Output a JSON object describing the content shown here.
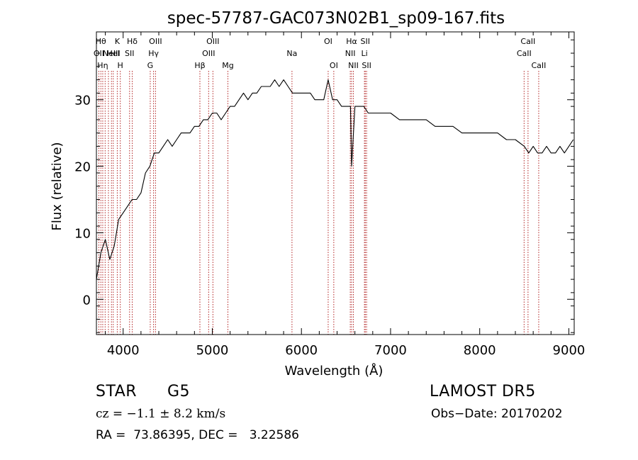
{
  "chart_data": {
    "type": "line",
    "title": "spec-57787-GAC073N02B1_sp09-167.fits",
    "xlabel": "Wavelength (Å)",
    "ylabel": "Flux (relative)",
    "xlim": [
      3700,
      9060
    ],
    "ylim": [
      -5.3,
      40.2
    ],
    "x_ticks": [
      4000,
      5000,
      6000,
      7000,
      8000,
      9000
    ],
    "x_tick_labels": [
      "4000",
      "5000",
      "6000",
      "7000",
      "8000",
      "9000"
    ],
    "y_ticks": [
      0,
      10,
      20,
      30
    ],
    "y_tick_labels": [
      "0",
      "10",
      "20",
      "30"
    ],
    "grid": false,
    "line_color": "#000000",
    "marker_color": "#b22222",
    "series": [
      {
        "x": [
          3700,
          3750,
          3800,
          3850,
          3900,
          3950,
          4000,
          4050,
          4100,
          4150,
          4200,
          4250,
          4300,
          4350,
          4400,
          4450,
          4500,
          4550,
          4600,
          4650,
          4700,
          4750,
          4800,
          4850,
          4900,
          4950,
          5000,
          5050,
          5100,
          5150,
          5200,
          5250,
          5300,
          5350,
          5400,
          5450,
          5500,
          5550,
          5600,
          5650,
          5700,
          5750,
          5800,
          5850,
          5900,
          5950,
          6000,
          6050,
          6100,
          6150,
          6200,
          6250,
          6300,
          6350,
          6400,
          6450,
          6500,
          6550,
          6563,
          6600,
          6650,
          6700,
          6750,
          6800,
          6850,
          6900,
          6950,
          7000,
          7100,
          7200,
          7300,
          7400,
          7500,
          7600,
          7700,
          7800,
          7900,
          8000,
          8100,
          8200,
          8300,
          8400,
          8500,
          8550,
          8600,
          8650,
          8700,
          8750,
          8800,
          8850,
          8900,
          8950,
          9000,
          9050
        ],
        "y": [
          3,
          7,
          9,
          6,
          8,
          12,
          13,
          14,
          15,
          15,
          16,
          19,
          20,
          22,
          22,
          23,
          24,
          23,
          24,
          25,
          25,
          25,
          26,
          26,
          27,
          27,
          28,
          28,
          27,
          28,
          29,
          29,
          30,
          31,
          30,
          31,
          31,
          32,
          32,
          32,
          33,
          32,
          33,
          32,
          31,
          31,
          31,
          31,
          31,
          30,
          30,
          30,
          33,
          30,
          30,
          29,
          29,
          29,
          20,
          29,
          29,
          29,
          28,
          28,
          28,
          28,
          28,
          28,
          27,
          27,
          27,
          27,
          26,
          26,
          26,
          25,
          25,
          25,
          25,
          25,
          24,
          24,
          23,
          22,
          23,
          22,
          22,
          23,
          22,
          22,
          23,
          22,
          23,
          24
        ]
      }
    ],
    "lines": [
      {
        "x": 3727,
        "row": 1,
        "label": "OII"
      },
      {
        "x": 3750,
        "row": 0,
        "label": "Hθ"
      },
      {
        "x": 3771,
        "row": 2,
        "label": "Hη"
      },
      {
        "x": 3798,
        "row": 2,
        "label": ""
      },
      {
        "x": 3835,
        "row": 0,
        "label": ""
      },
      {
        "x": 3869,
        "row": 1,
        "label": "NeIII"
      },
      {
        "x": 3889,
        "row": 1,
        "label": "HeI"
      },
      {
        "x": 3934,
        "row": 0,
        "label": "K"
      },
      {
        "x": 3968,
        "row": 2,
        "label": "H"
      },
      {
        "x": 4072,
        "row": 1,
        "label": "SII"
      },
      {
        "x": 4102,
        "row": 0,
        "label": "Hδ"
      },
      {
        "x": 4304,
        "row": 2,
        "label": "G"
      },
      {
        "x": 4341,
        "row": 1,
        "label": "Hγ"
      },
      {
        "x": 4363,
        "row": 0,
        "label": "OIII"
      },
      {
        "x": 4861,
        "row": 2,
        "label": "Hβ"
      },
      {
        "x": 4959,
        "row": 1,
        "label": "OIII"
      },
      {
        "x": 5007,
        "row": 0,
        "label": "OIII"
      },
      {
        "x": 5175,
        "row": 2,
        "label": "Mg"
      },
      {
        "x": 5894,
        "row": 1,
        "label": "Na"
      },
      {
        "x": 6300,
        "row": 0,
        "label": "OI"
      },
      {
        "x": 6363,
        "row": 2,
        "label": "OI"
      },
      {
        "x": 6548,
        "row": 1,
        "label": "NII"
      },
      {
        "x": 6563,
        "row": 0,
        "label": "Hα"
      },
      {
        "x": 6583,
        "row": 2,
        "label": "NII"
      },
      {
        "x": 6707,
        "row": 1,
        "label": "Li"
      },
      {
        "x": 6716,
        "row": 0,
        "label": "SII"
      },
      {
        "x": 6731,
        "row": 2,
        "label": "SII"
      },
      {
        "x": 8498,
        "row": 1,
        "label": "CaII"
      },
      {
        "x": 8542,
        "row": 0,
        "label": "CaII"
      },
      {
        "x": 8662,
        "row": 2,
        "label": "CaII"
      }
    ]
  },
  "info": {
    "object_class": "STAR",
    "subclass": "G5",
    "survey": "LAMOST DR5",
    "cz": "cz = −1.1 ± 8.2 km/s",
    "obs_date": "Obs−Date: 20170202",
    "coords": "RA =  73.86395, DEC =   3.22586"
  }
}
